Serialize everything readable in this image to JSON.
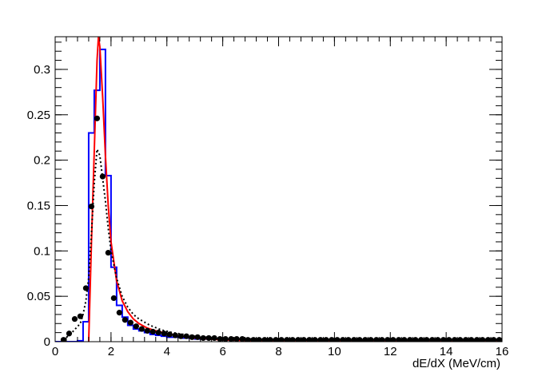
{
  "chart_data": {
    "type": "histogram",
    "xlabel": "dE/dX (MeV/cm)",
    "ylabel": "",
    "title": "",
    "xlim": [
      0,
      16
    ],
    "ylim": [
      0,
      0.336
    ],
    "x_ticks": [
      0,
      2,
      4,
      6,
      8,
      10,
      12,
      14,
      16
    ],
    "x_tick_labels": [
      "0",
      "2",
      "4",
      "6",
      "8",
      "10",
      "12",
      "14",
      "16"
    ],
    "y_ticks": [
      0,
      0.05,
      0.1,
      0.15,
      0.2,
      0.25,
      0.3
    ],
    "y_tick_labels": [
      "0",
      "0.05",
      "0.1",
      "0.15",
      "0.2",
      "0.25",
      "0.3"
    ],
    "grid": false,
    "legend": "none",
    "series": [
      {
        "style": "histogram-step",
        "color": "#0000ff",
        "bin_edges": [
          0,
          0.2,
          0.4,
          0.6,
          0.8,
          1.0,
          1.2,
          1.4,
          1.6,
          1.8,
          2.0,
          2.2,
          2.4,
          2.6,
          2.8,
          3.0,
          3.2,
          3.4,
          3.6,
          3.8,
          4.0,
          4.5,
          5.0,
          6.0,
          7.0,
          8.0,
          10.0,
          12.0,
          14.0,
          16.0
        ],
        "values": [
          0,
          0,
          0,
          0,
          0.001,
          0.022,
          0.23,
          0.277,
          0.322,
          0.183,
          0.082,
          0.04,
          0.027,
          0.018,
          0.014,
          0.012,
          0.01,
          0.008,
          0.007,
          0.006,
          0.005,
          0.004,
          0.003,
          0.002,
          0.001,
          0.0005,
          0.0003,
          0.0002,
          0.0001
        ]
      },
      {
        "style": "smooth-line",
        "color": "#ff0000",
        "x": [
          1.2,
          1.3,
          1.38,
          1.45,
          1.5,
          1.55,
          1.6,
          1.7,
          1.8,
          1.9,
          2.0,
          2.2,
          2.4,
          2.6,
          2.8,
          3.0,
          3.3,
          3.6,
          4.0,
          4.5,
          5.0,
          6.0,
          7.0,
          8.0,
          10.0,
          12.0,
          14.0,
          16.0
        ],
        "y": [
          0.0,
          0.11,
          0.19,
          0.26,
          0.31,
          0.336,
          0.325,
          0.27,
          0.205,
          0.15,
          0.11,
          0.067,
          0.045,
          0.033,
          0.025,
          0.02,
          0.015,
          0.012,
          0.009,
          0.006,
          0.004,
          0.002,
          0.0012,
          0.0008,
          0.0004,
          0.0002,
          0.0001,
          5e-05
        ]
      },
      {
        "style": "dotted-line",
        "color": "#000000",
        "x": [
          0.3,
          0.6,
          0.9,
          1.0,
          1.1,
          1.2,
          1.3,
          1.4,
          1.5,
          1.6,
          1.7,
          1.8,
          1.9,
          2.0,
          2.2,
          2.4,
          2.6,
          2.8,
          3.0,
          3.4,
          3.8,
          4.2,
          4.6,
          5.0,
          6.0,
          7.0,
          8.0,
          10.0,
          12.0,
          14.0,
          16.0
        ],
        "y": [
          0.002,
          0.01,
          0.02,
          0.03,
          0.045,
          0.07,
          0.12,
          0.175,
          0.212,
          0.205,
          0.18,
          0.155,
          0.125,
          0.1,
          0.07,
          0.05,
          0.038,
          0.03,
          0.025,
          0.018,
          0.013,
          0.01,
          0.008,
          0.006,
          0.004,
          0.003,
          0.002,
          0.0015,
          0.001,
          0.001,
          0.001
        ]
      },
      {
        "style": "markers-with-xerr",
        "color": "#000000",
        "x": [
          0.3,
          0.5,
          0.7,
          0.9,
          1.1,
          1.3,
          1.5,
          1.7,
          1.9,
          2.1,
          2.3,
          2.5,
          2.7,
          2.9,
          3.1,
          3.3,
          3.5,
          3.7,
          3.9,
          4.1,
          4.3,
          4.5,
          4.7,
          4.9,
          5.1,
          5.3,
          5.5,
          5.7,
          5.9,
          6.1,
          6.3,
          6.5,
          6.7,
          6.9,
          7.1,
          7.3,
          7.5,
          7.7,
          7.9,
          8.1,
          8.3,
          8.5,
          8.7,
          8.9,
          9.1,
          9.3,
          9.5,
          9.7,
          9.9,
          10.1,
          10.3,
          10.5,
          10.7,
          10.9,
          11.1,
          11.3,
          11.5,
          11.7,
          11.9,
          12.1,
          12.3,
          12.5,
          12.7,
          12.9,
          13.1,
          13.3,
          13.5,
          13.7,
          13.9,
          14.1,
          14.3,
          14.5,
          14.7,
          14.9,
          15.1,
          15.3,
          15.5,
          15.7,
          15.9
        ],
        "y": [
          0.002,
          0.009,
          0.025,
          0.028,
          0.059,
          0.149,
          0.246,
          0.182,
          0.098,
          0.048,
          0.032,
          0.024,
          0.021,
          0.017,
          0.014,
          0.012,
          0.011,
          0.01,
          0.009,
          0.008,
          0.007,
          0.006,
          0.006,
          0.005,
          0.005,
          0.004,
          0.004,
          0.004,
          0.003,
          0.003,
          0.003,
          0.003,
          0.003,
          0.002,
          0.002,
          0.002,
          0.002,
          0.002,
          0.002,
          0.002,
          0.002,
          0.002,
          0.002,
          0.002,
          0.002,
          0.002,
          0.002,
          0.002,
          0.002,
          0.002,
          0.002,
          0.002,
          0.002,
          0.002,
          0.002,
          0.002,
          0.002,
          0.002,
          0.002,
          0.002,
          0.002,
          0.002,
          0.002,
          0.002,
          0.002,
          0.002,
          0.002,
          0.002,
          0.002,
          0.002,
          0.002,
          0.002,
          0.002,
          0.002,
          0.002,
          0.002,
          0.002,
          0.002,
          0.002
        ],
        "xerr": 0.1
      }
    ]
  }
}
